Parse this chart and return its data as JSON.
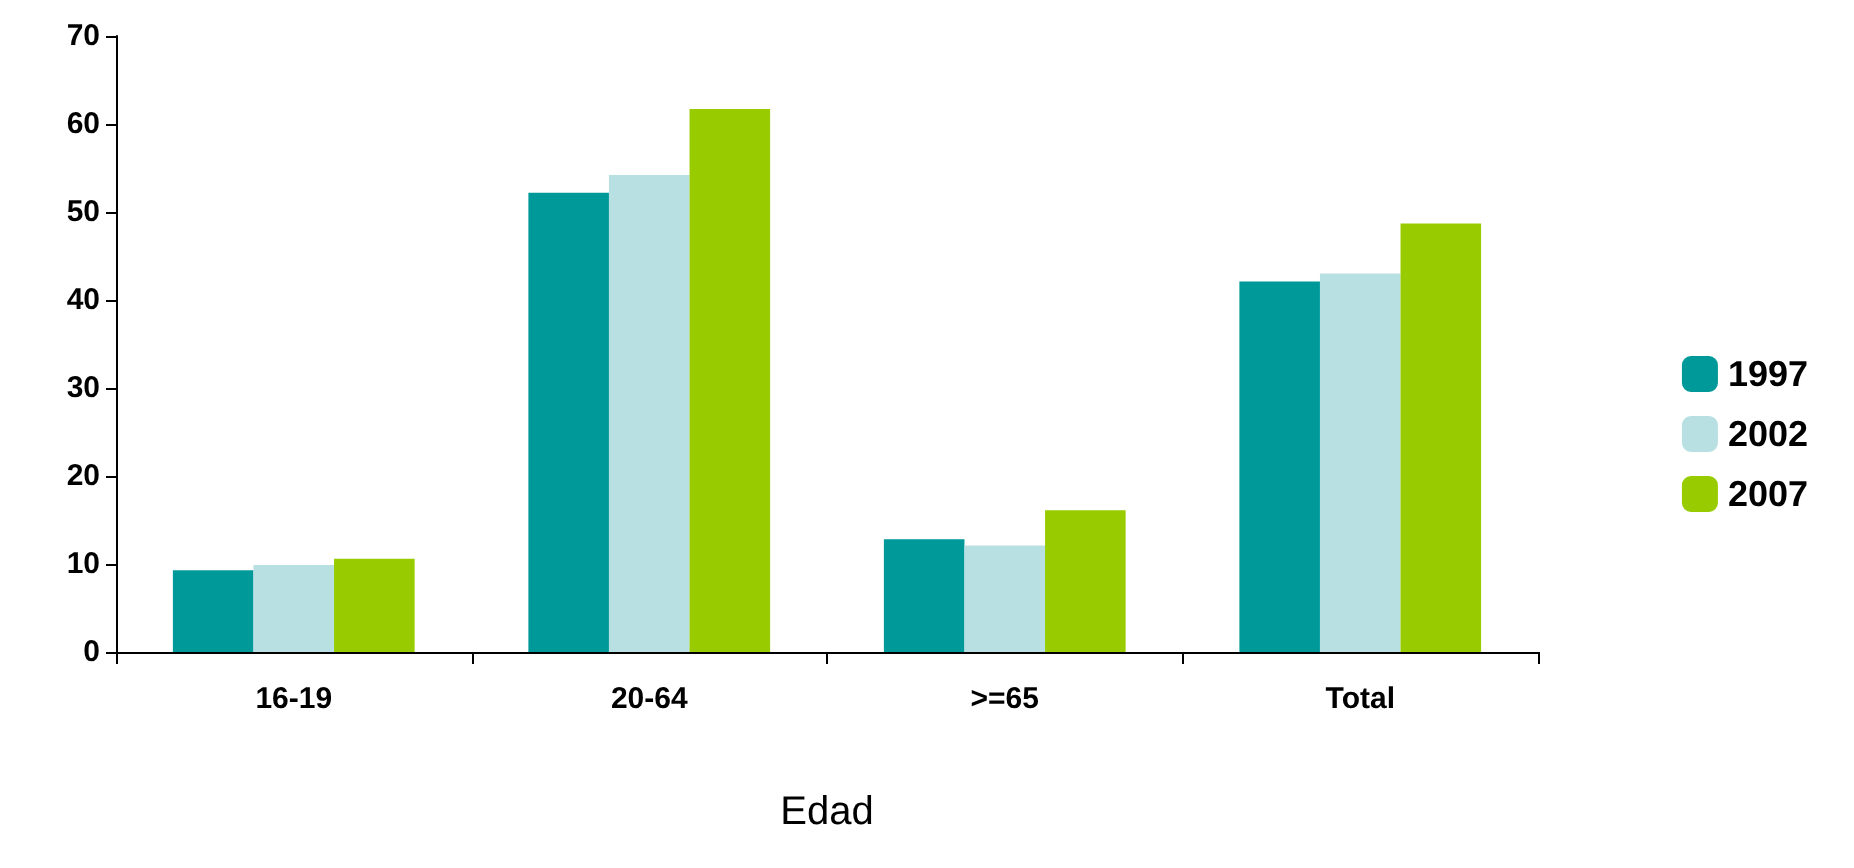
{
  "chart_data": {
    "type": "bar",
    "xlabel": "Edad",
    "categories": [
      "16-19",
      "20-64",
      ">=65",
      "Total"
    ],
    "series": [
      {
        "name": "1997",
        "color": "#009999",
        "values": [
          9.3,
          52.2,
          12.8,
          42.1
        ]
      },
      {
        "name": "2002",
        "color": "#b8e0e3",
        "values": [
          9.9,
          54.2,
          12.1,
          43
        ]
      },
      {
        "name": "2007",
        "color": "#99cc00",
        "values": [
          10.6,
          61.7,
          16.1,
          48.7
        ]
      }
    ],
    "ylim": [
      0,
      70
    ],
    "yticks": [
      0,
      10,
      20,
      30,
      40,
      50,
      60,
      70
    ],
    "grid": false,
    "legend": "right"
  }
}
